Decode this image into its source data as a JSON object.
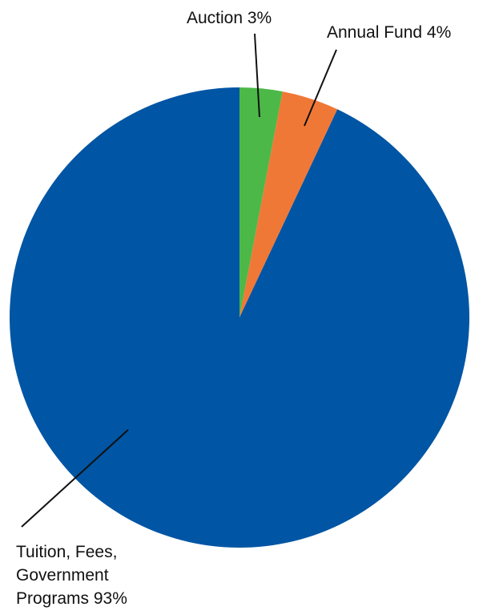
{
  "chart_data": {
    "type": "pie",
    "title": "",
    "start_angle_deg": 0,
    "direction": "clockwise",
    "slices": [
      {
        "name": "Auction",
        "value": 3,
        "label_lines": [
          "Auction 3%"
        ],
        "color": "#4cb848"
      },
      {
        "name": "Annual Fund",
        "value": 4,
        "label_lines": [
          "Annual Fund 4%"
        ],
        "color": "#f07836"
      },
      {
        "name": "Tuition, Fees, Government Programs",
        "value": 93,
        "label_lines": [
          "Tuition, Fees,",
          "Government",
          "Programs 93%"
        ],
        "color": "#0055a4"
      }
    ]
  }
}
